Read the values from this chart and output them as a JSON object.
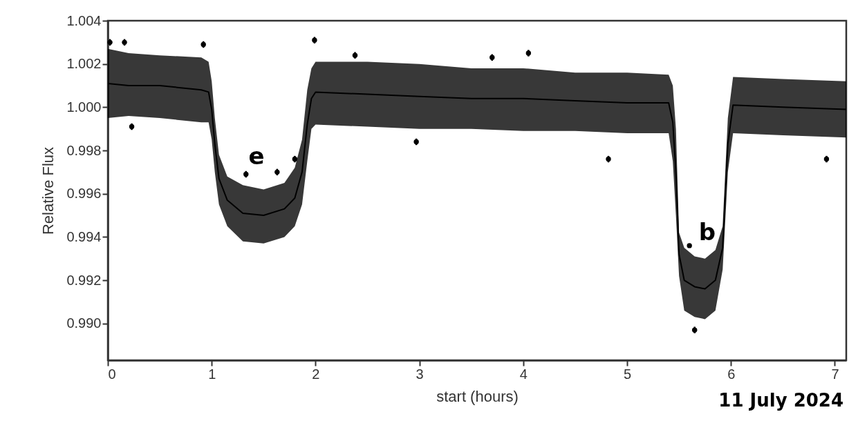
{
  "chart_data": {
    "type": "scatter",
    "xlabel": "start (hours)",
    "ylabel": "Relative Flux",
    "xlim": [
      0,
      7.11
    ],
    "ylim": [
      0.9883,
      1.004
    ],
    "xticks": [
      0,
      1,
      2,
      3,
      4,
      5,
      6,
      7
    ],
    "yticks": [
      {
        "value": 0.99,
        "label": "0.990"
      },
      0.992,
      0.994,
      0.996,
      0.998,
      {
        "value": 1,
        "label": "1.000"
      },
      1.002,
      1.004
    ],
    "grid": false,
    "series": [
      {
        "type": "line",
        "color": "#000000",
        "x": [
          0,
          0.2,
          0.5,
          0.9,
          0.97,
          1.0,
          1.03,
          1.07,
          1.15,
          1.3,
          1.5,
          1.7,
          1.8,
          1.87,
          1.92,
          1.96,
          2.0,
          2.5,
          3.0,
          3.5,
          4.0,
          4.5,
          5.0,
          5.4,
          5.44,
          5.47,
          5.5,
          5.55,
          5.65,
          5.75,
          5.85,
          5.92,
          5.97,
          6.02,
          6.5,
          7.11
        ],
        "values": [
          1.0011,
          1.001,
          1.001,
          1.0008,
          1.0007,
          0.9999,
          0.9983,
          0.9967,
          0.9957,
          0.9951,
          0.995,
          0.9953,
          0.9958,
          0.997,
          0.9992,
          1.0004,
          1.0007,
          1.0006,
          1.0005,
          1.0004,
          1.0004,
          1.0003,
          1.0002,
          1.0002,
          0.9993,
          0.997,
          0.9932,
          0.992,
          0.9917,
          0.9916,
          0.992,
          0.9935,
          0.9983,
          1.0001,
          1.0,
          0.9999
        ],
        "lower": [
          0.9995,
          0.9996,
          0.9995,
          0.9993,
          0.9993,
          0.9985,
          0.997,
          0.9955,
          0.9945,
          0.9938,
          0.9937,
          0.994,
          0.9945,
          0.9955,
          0.9975,
          0.999,
          0.9992,
          0.9991,
          0.999,
          0.999,
          0.9989,
          0.9989,
          0.9988,
          0.9988,
          0.9975,
          0.995,
          0.9922,
          0.9906,
          0.9903,
          0.9902,
          0.9906,
          0.9925,
          0.997,
          0.9988,
          0.9987,
          0.9986
        ],
        "upper": [
          1.0027,
          1.0025,
          1.0024,
          1.0023,
          1.0021,
          1.0012,
          0.9995,
          0.9978,
          0.9968,
          0.9964,
          0.9962,
          0.9965,
          0.9972,
          0.9985,
          1.0008,
          1.0018,
          1.0021,
          1.0021,
          1.002,
          1.0018,
          1.0018,
          1.0016,
          1.0016,
          1.0015,
          1.001,
          0.999,
          0.9942,
          0.9935,
          0.9931,
          0.993,
          0.9934,
          0.9945,
          0.9995,
          1.0014,
          1.0013,
          1.0012
        ]
      },
      {
        "color": "#000000",
        "marker": "circle",
        "x": [
          0.02,
          0.16,
          0.92,
          0.23,
          1.99,
          2.38,
          3.7,
          4.05,
          2.97,
          4.82,
          6.92,
          1.8,
          1.63,
          1.33,
          5.65,
          5.6
        ],
        "values": [
          1.003,
          1.003,
          1.0029,
          0.9991,
          1.0031,
          1.0024,
          1.0023,
          1.0025,
          0.9984,
          0.9976,
          0.9976,
          0.9976,
          0.997,
          0.9969,
          0.9897,
          0.9936
        ],
        "errors": [
          0.00015,
          0.00015,
          0.00015,
          0.00015,
          0.00015,
          0.00015,
          0.00015,
          0.00015,
          0.00015,
          0.00015,
          0.00015,
          0.00015,
          0.00015,
          0.00015,
          0.00015,
          null
        ]
      }
    ],
    "annotations": [
      "e",
      "b",
      "11 July 2024"
    ]
  }
}
